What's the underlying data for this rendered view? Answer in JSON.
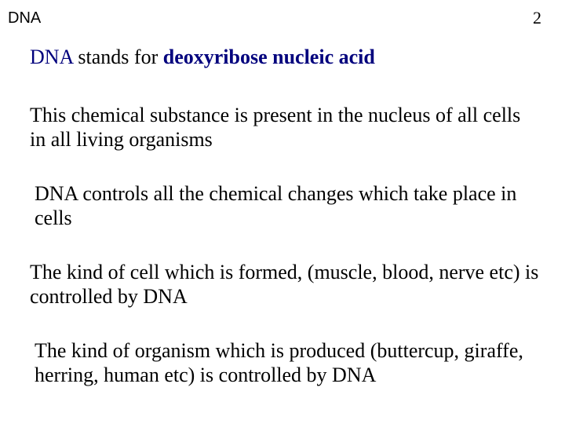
{
  "header": {
    "label": "DNA",
    "page_number": "2"
  },
  "title": {
    "prefix": "DNA",
    "middle": " stands for  ",
    "expansion": "deoxyribose nucleic acid"
  },
  "paragraphs": {
    "p1": "This chemical substance is present in the nucleus of all cells in all living organisms",
    "p2": "DNA controls all the chemical changes which take place in cells",
    "p3": "The kind of cell which is formed, (muscle, blood, nerve etc) is controlled by DNA",
    "p4": "The kind of organism which is produced (buttercup, giraffe, herring, human etc) is controlled by DNA"
  },
  "colors": {
    "background": "#ffffff",
    "text": "#000000",
    "accent": "#00007d"
  },
  "typography": {
    "body_font": "Times New Roman",
    "header_font": "Arial",
    "body_size_pt": 20,
    "header_size_pt": 15
  }
}
